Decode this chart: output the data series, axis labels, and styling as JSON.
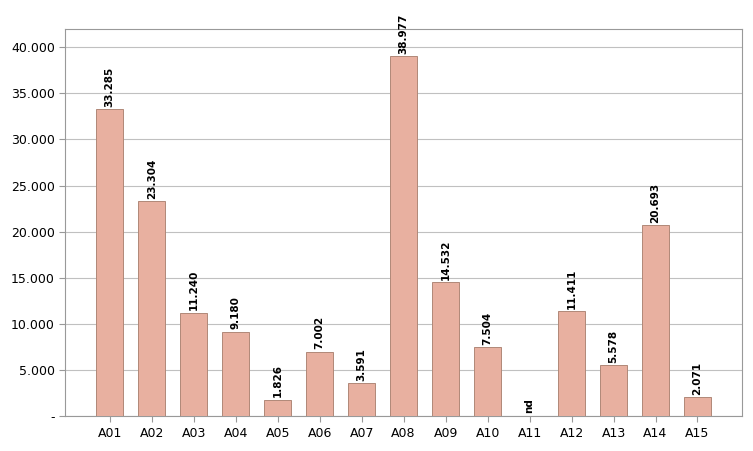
{
  "categories": [
    "A01",
    "A02",
    "A03",
    "A04",
    "A05",
    "A06",
    "A07",
    "A08",
    "A09",
    "A10",
    "A11",
    "A12",
    "A13",
    "A14",
    "A15"
  ],
  "values": [
    33285,
    23304,
    11240,
    9180,
    1826,
    7002,
    3591,
    38977,
    14532,
    7504,
    0,
    11411,
    5578,
    20693,
    2071
  ],
  "labels": [
    "33.285",
    "23.304",
    "11.240",
    "9.180",
    "1.826",
    "7.002",
    "3.591",
    "38.977",
    "14.532",
    "7.504",
    "nd",
    "11.411",
    "5.578",
    "20.693",
    "2.071"
  ],
  "bar_color": "#e8b0a0",
  "bar_edgecolor": "#b08878",
  "background_color": "#ffffff",
  "plot_bg_color": "#ffffff",
  "grid_color": "#c0c0c0",
  "ylim": [
    0,
    42000
  ],
  "yticks": [
    0,
    5000,
    10000,
    15000,
    20000,
    25000,
    30000,
    35000,
    40000
  ],
  "ytick_labels": [
    "-",
    "5.000",
    "10.000",
    "15.000",
    "20.000",
    "25.000",
    "30.000",
    "35.000",
    "40.000"
  ],
  "label_fontsize": 7.5,
  "tick_fontsize": 9,
  "nd_index": 10,
  "bar_width": 0.65
}
